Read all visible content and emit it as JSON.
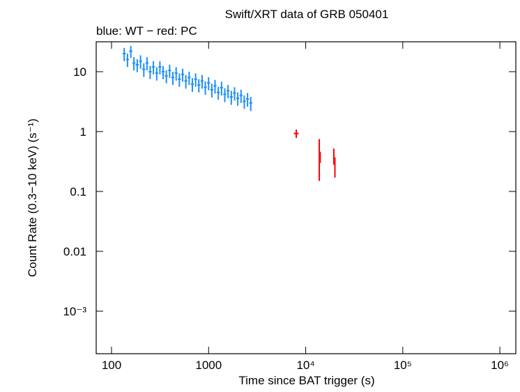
{
  "chart_data": {
    "type": "scatter",
    "title": "Swift/XRT data of GRB 050401",
    "subtitle": "blue: WT − red: PC",
    "x_label": "Time since BAT trigger (s)",
    "y_label": "Count Rate (0.3−10 keV) (s⁻¹)",
    "xlog": true,
    "ylog": true,
    "xlim": [
      69.5,
      1460000
    ],
    "ylim": [
      0.000195,
      31.6
    ],
    "xticks": [
      100,
      1000,
      {
        "value": 10000,
        "label": "10⁴"
      },
      {
        "value": 100000,
        "label": "10⁵"
      },
      {
        "value": 1000000,
        "label": "10⁶"
      }
    ],
    "yticks": [
      10,
      1,
      0.1,
      0.01,
      {
        "value": 0.001,
        "label": "10⁻³"
      }
    ],
    "series": [
      {
        "color": "#1e8fff",
        "x": [
          135,
          146,
          158,
          170,
          184,
          199,
          215,
          232,
          250,
          270,
          292,
          315,
          340,
          367,
          397,
          428,
          463,
          500,
          540,
          583,
          630,
          680,
          735,
          793,
          857,
          925,
          999,
          1079,
          1165,
          1258,
          1359,
          1468,
          1585,
          1712,
          1849,
          1997,
          2157,
          2329,
          2516,
          2717
        ],
        "values": [
          20,
          16,
          22,
          14,
          13,
          15,
          11,
          14,
          10,
          12,
          9.5,
          12,
          10,
          8.5,
          10.5,
          8,
          9.5,
          7.5,
          9,
          7,
          8,
          6.2,
          7.5,
          6,
          7,
          5.5,
          6.5,
          5,
          5.8,
          4.5,
          5.4,
          4.2,
          4.8,
          3.8,
          4.4,
          3.6,
          4.0,
          3.2,
          3.5,
          3.0
        ],
        "xerr": [
          5,
          5,
          6,
          6,
          7,
          7,
          8,
          8,
          9,
          10,
          10,
          11,
          12,
          13,
          14,
          15,
          16,
          18,
          19,
          20,
          22,
          24,
          26,
          28,
          30,
          32,
          35,
          38,
          41,
          44,
          48,
          52,
          56,
          60,
          65,
          70,
          76,
          82,
          88,
          95
        ],
        "yerr": [
          5,
          4,
          5,
          3.5,
          3.2,
          3.8,
          2.8,
          3.5,
          2.5,
          3,
          2.4,
          3,
          2.5,
          2.1,
          2.6,
          2,
          2.4,
          1.9,
          2.2,
          1.8,
          2,
          1.6,
          1.9,
          1.5,
          1.8,
          1.4,
          1.6,
          1.3,
          1.5,
          1.1,
          1.4,
          1.1,
          1.2,
          1,
          1.1,
          0.9,
          1,
          0.8,
          0.9,
          0.8
        ]
      },
      {
        "color": "#ff0000",
        "x": [
          8000,
          13800,
          14100,
          19500,
          20000
        ],
        "values": [
          0.93,
          0.45,
          0.38,
          0.4,
          0.27
        ],
        "xerr": [
          450,
          150,
          150,
          300,
          300
        ],
        "yerr": [
          0.15,
          0.3,
          0.08,
          0.12,
          0.1
        ]
      }
    ]
  }
}
